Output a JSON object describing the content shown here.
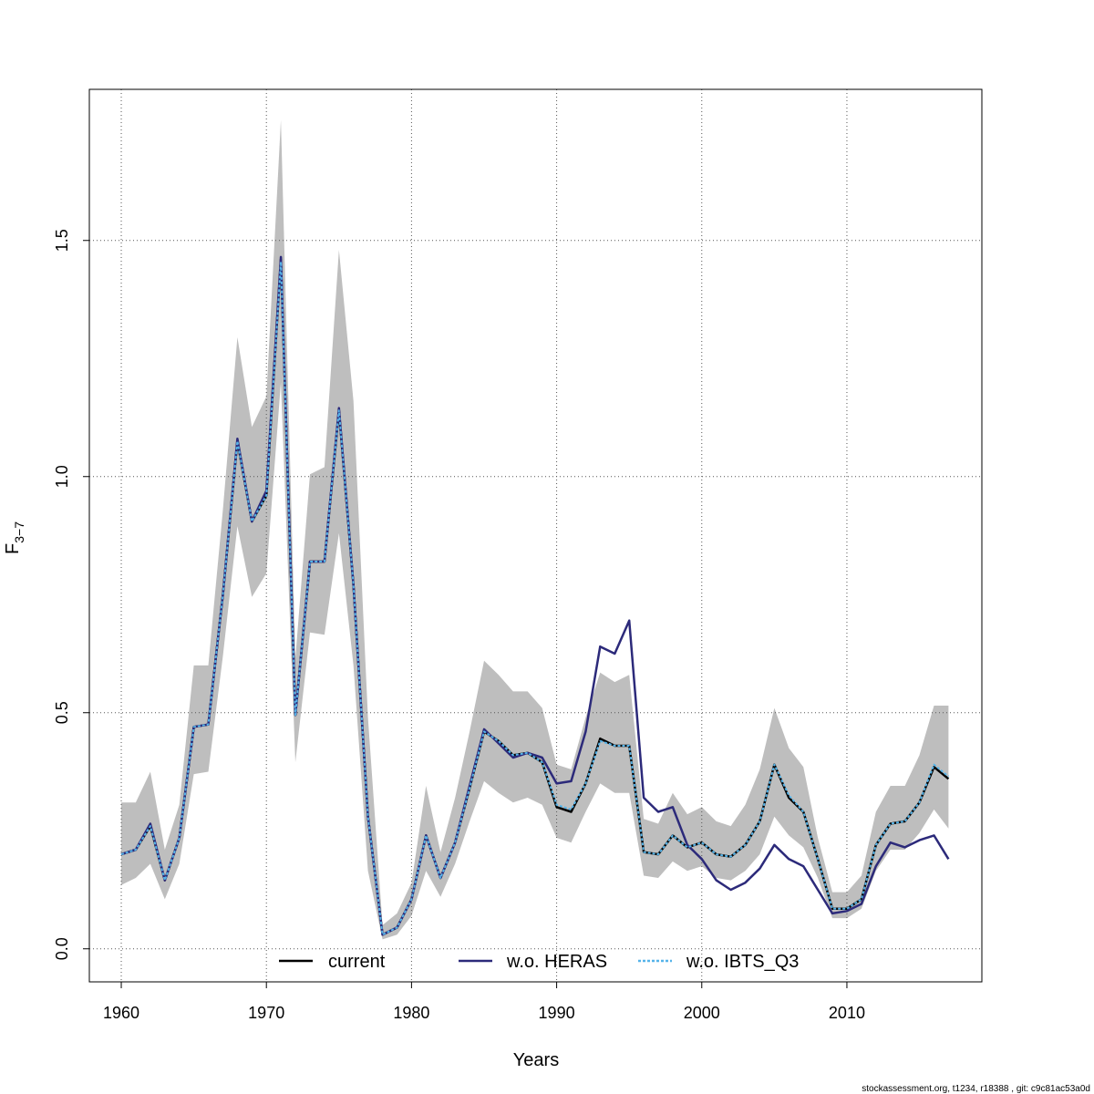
{
  "chart_data": {
    "type": "line",
    "xlabel": "Years",
    "ylabel_main": "F",
    "ylabel_sub": "3−7",
    "xlim": [
      1957.8,
      2019.3
    ],
    "ylim": [
      -0.07,
      1.82
    ],
    "x_ticks": [
      1960,
      1970,
      1980,
      1990,
      2000,
      2010
    ],
    "y_ticks": [
      0.0,
      0.5,
      1.0,
      1.5
    ],
    "x_tick_labels": [
      "1960",
      "1970",
      "1980",
      "1990",
      "2000",
      "2010"
    ],
    "y_tick_labels": [
      "0.0",
      "0.5",
      "1.0",
      "1.5"
    ],
    "grid": true,
    "legend_position": "bottom",
    "colors": {
      "band": "#bebebe",
      "current": "#000000",
      "heras": "#2c2a7a",
      "ibts": "#56b4e9",
      "grid": "#555555"
    },
    "years": [
      1960,
      1961,
      1962,
      1963,
      1964,
      1965,
      1966,
      1967,
      1968,
      1969,
      1970,
      1971,
      1972,
      1973,
      1974,
      1975,
      1976,
      1977,
      1978,
      1979,
      1980,
      1981,
      1982,
      1983,
      1984,
      1985,
      1986,
      1987,
      1988,
      1989,
      1990,
      1991,
      1992,
      1993,
      1994,
      1995,
      1996,
      1997,
      1998,
      1999,
      2000,
      2001,
      2002,
      2003,
      2004,
      2005,
      2006,
      2007,
      2008,
      2009,
      2010,
      2011,
      2012,
      2013,
      2014,
      2015,
      2016,
      2017
    ],
    "band": {
      "lower": [
        0.135,
        0.15,
        0.18,
        0.105,
        0.18,
        0.37,
        0.375,
        0.62,
        0.895,
        0.745,
        0.795,
        1.2,
        0.395,
        0.67,
        0.665,
        0.88,
        0.6,
        0.165,
        0.02,
        0.03,
        0.07,
        0.165,
        0.11,
        0.18,
        0.27,
        0.355,
        0.33,
        0.31,
        0.32,
        0.305,
        0.235,
        0.225,
        0.29,
        0.35,
        0.33,
        0.33,
        0.155,
        0.15,
        0.185,
        0.165,
        0.175,
        0.15,
        0.145,
        0.165,
        0.2,
        0.28,
        0.24,
        0.215,
        0.15,
        0.065,
        0.065,
        0.085,
        0.165,
        0.21,
        0.21,
        0.245,
        0.295,
        0.255
      ],
      "upper": [
        0.31,
        0.31,
        0.375,
        0.21,
        0.305,
        0.6,
        0.6,
        0.93,
        1.295,
        1.105,
        1.17,
        1.755,
        0.615,
        1.005,
        1.02,
        1.48,
        1.16,
        0.49,
        0.05,
        0.075,
        0.14,
        0.345,
        0.205,
        0.32,
        0.46,
        0.61,
        0.58,
        0.545,
        0.545,
        0.51,
        0.39,
        0.38,
        0.49,
        0.585,
        0.565,
        0.58,
        0.275,
        0.265,
        0.33,
        0.285,
        0.3,
        0.27,
        0.26,
        0.305,
        0.38,
        0.51,
        0.425,
        0.385,
        0.235,
        0.12,
        0.12,
        0.155,
        0.29,
        0.345,
        0.345,
        0.41,
        0.515,
        0.515
      ]
    },
    "series": [
      {
        "name": "current",
        "values": [
          0.2,
          0.21,
          0.26,
          0.145,
          0.235,
          0.47,
          0.475,
          0.75,
          1.075,
          0.905,
          0.96,
          1.46,
          0.495,
          0.82,
          0.82,
          1.14,
          0.77,
          0.28,
          0.03,
          0.045,
          0.105,
          0.24,
          0.15,
          0.225,
          0.34,
          0.46,
          0.44,
          0.41,
          0.415,
          0.395,
          0.3,
          0.29,
          0.35,
          0.445,
          0.43,
          0.43,
          0.205,
          0.2,
          0.24,
          0.215,
          0.225,
          0.2,
          0.195,
          0.22,
          0.27,
          0.39,
          0.32,
          0.29,
          0.19,
          0.085,
          0.085,
          0.105,
          0.22,
          0.265,
          0.27,
          0.31,
          0.385,
          0.36
        ]
      },
      {
        "name": "w.o. HERAS",
        "values": [
          0.2,
          0.21,
          0.265,
          0.145,
          0.235,
          0.47,
          0.475,
          0.75,
          1.08,
          0.905,
          0.97,
          1.465,
          0.495,
          0.82,
          0.82,
          1.145,
          0.77,
          0.28,
          0.03,
          0.045,
          0.105,
          0.24,
          0.15,
          0.225,
          0.345,
          0.465,
          0.435,
          0.405,
          0.415,
          0.405,
          0.35,
          0.355,
          0.46,
          0.64,
          0.625,
          0.695,
          0.32,
          0.29,
          0.3,
          0.22,
          0.19,
          0.145,
          0.125,
          0.14,
          0.17,
          0.22,
          0.19,
          0.175,
          0.125,
          0.075,
          0.08,
          0.095,
          0.175,
          0.225,
          0.215,
          0.23,
          0.24,
          0.19
        ]
      },
      {
        "name": "w.o. IBTS_Q3",
        "values": [
          0.2,
          0.21,
          0.26,
          0.145,
          0.235,
          0.47,
          0.475,
          0.75,
          1.075,
          0.905,
          0.96,
          1.455,
          0.495,
          0.82,
          0.82,
          1.14,
          0.77,
          0.28,
          0.03,
          0.045,
          0.105,
          0.24,
          0.15,
          0.225,
          0.34,
          0.46,
          0.44,
          0.41,
          0.415,
          0.395,
          0.305,
          0.295,
          0.35,
          0.44,
          0.43,
          0.43,
          0.205,
          0.2,
          0.24,
          0.215,
          0.225,
          0.2,
          0.195,
          0.22,
          0.27,
          0.39,
          0.325,
          0.29,
          0.19,
          0.085,
          0.085,
          0.105,
          0.22,
          0.265,
          0.27,
          0.31,
          0.39,
          0.365
        ]
      }
    ],
    "legend": [
      "current",
      "w.o. HERAS",
      "w.o. IBTS_Q3"
    ]
  },
  "footer_text": "stockassessment.org, t1234, r18388 , git: c9c81ac53a0d"
}
